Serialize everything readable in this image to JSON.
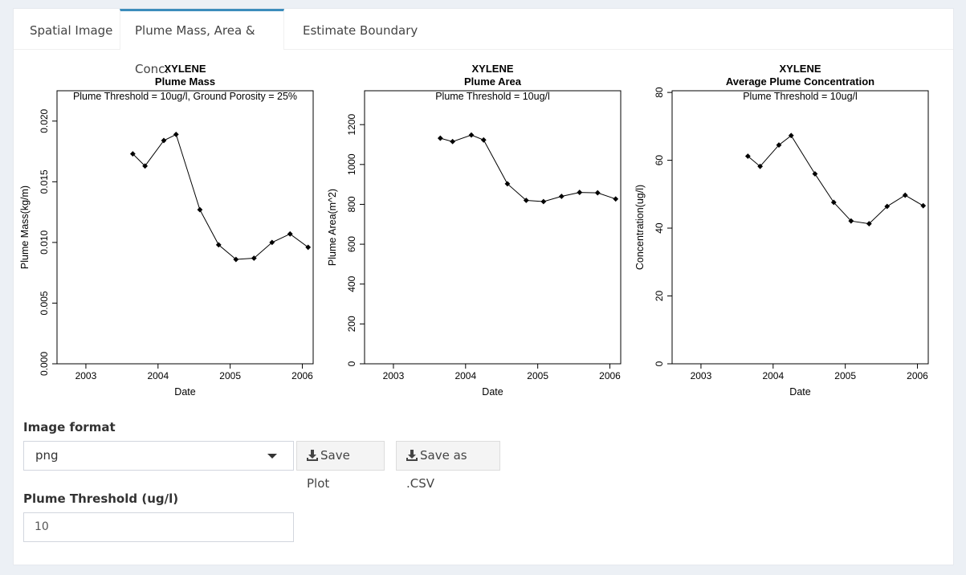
{
  "tabs": [
    {
      "label": "Spatial Image"
    },
    {
      "label": "Plume Mass, Area & Conc."
    },
    {
      "label": "Estimate Boundary"
    }
  ],
  "controls": {
    "image_format_label": "Image format",
    "image_format_value": "png",
    "save_plot_label": "Save Plot",
    "save_csv_label": "Save as .CSV",
    "threshold_label": "Plume Threshold (ug/l)",
    "threshold_value": "10"
  },
  "chart_data": [
    {
      "type": "line",
      "title": "XYLENE",
      "subtitle": "Plume Mass",
      "annotation": "Plume Threshold = 10ug/l, Ground Porosity = 25%",
      "xlabel": "Date",
      "ylabel": "Plume Mass(kg/m)",
      "xlim": [
        2002.6,
        2006.15
      ],
      "ylim": [
        0,
        0.0225
      ],
      "xticks": [
        2003,
        2004,
        2005,
        2006
      ],
      "yticks": [
        0,
        0.005,
        0.01,
        0.015,
        0.02
      ],
      "ytick_labels": [
        "0.000",
        "0.005",
        "0.010",
        "0.015",
        "0.020"
      ],
      "x": [
        2003.65,
        2003.82,
        2004.08,
        2004.25,
        2004.58,
        2004.84,
        2005.08,
        2005.33,
        2005.58,
        2005.83,
        2006.08
      ],
      "y": [
        0.0173,
        0.0163,
        0.0184,
        0.0189,
        0.0127,
        0.0098,
        0.0086,
        0.0087,
        0.01,
        0.0107,
        0.0096
      ]
    },
    {
      "type": "line",
      "title": "XYLENE",
      "subtitle": "Plume Area",
      "annotation": "Plume Threshold = 10ug/l",
      "xlabel": "Date",
      "ylabel": "Plume Area(m^2)",
      "xlim": [
        2002.6,
        2006.15
      ],
      "ylim": [
        0,
        1370
      ],
      "xticks": [
        2003,
        2004,
        2005,
        2006
      ],
      "yticks": [
        0,
        200,
        400,
        600,
        800,
        1000,
        1200
      ],
      "ytick_labels": [
        "0",
        "200",
        "400",
        "600",
        "800",
        "1000",
        "1200"
      ],
      "x": [
        2003.65,
        2003.82,
        2004.08,
        2004.25,
        2004.58,
        2004.84,
        2005.08,
        2005.33,
        2005.58,
        2005.83,
        2006.08
      ],
      "y": [
        1132,
        1115,
        1148,
        1123,
        903,
        820,
        814,
        840,
        860,
        858,
        827
      ]
    },
    {
      "type": "line",
      "title": "XYLENE",
      "subtitle": "Average Plume Concentration",
      "annotation": "Plume Threshold = 10ug/l",
      "xlabel": "Date",
      "ylabel": "Concentration(ug/l)",
      "xlim": [
        2002.6,
        2006.15
      ],
      "ylim": [
        0,
        80.5
      ],
      "xticks": [
        2003,
        2004,
        2005,
        2006
      ],
      "yticks": [
        0,
        20,
        40,
        60,
        80
      ],
      "ytick_labels": [
        "0",
        "20",
        "40",
        "60",
        "80"
      ],
      "x": [
        2003.65,
        2003.82,
        2004.08,
        2004.25,
        2004.58,
        2004.84,
        2005.08,
        2005.33,
        2005.58,
        2005.83,
        2006.08
      ],
      "y": [
        61.2,
        58.2,
        64.5,
        67.3,
        56.0,
        47.6,
        42.1,
        41.3,
        46.4,
        49.7,
        46.6
      ]
    }
  ]
}
